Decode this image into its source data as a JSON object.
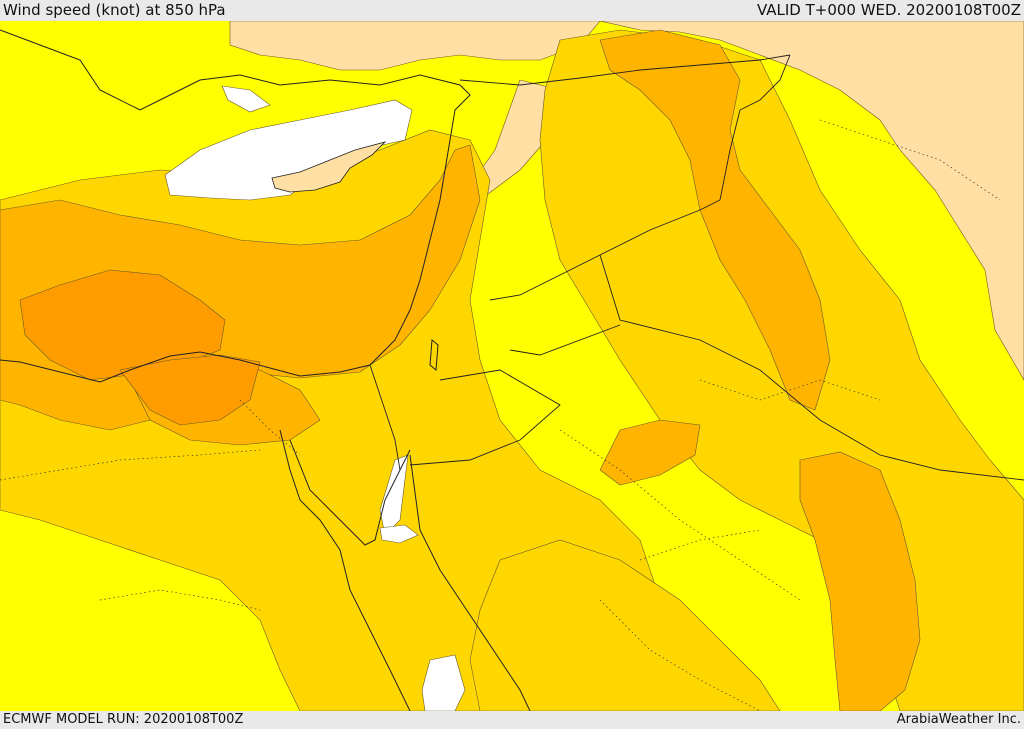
{
  "header": {
    "title": "Wind speed (knot) at 850 hPa",
    "valid": "VALID T+000 WED. 20200108T00Z"
  },
  "footer": {
    "model_run": "ECMWF MODEL RUN: 20200108T00Z",
    "brand": "ArabiaWeather Inc."
  },
  "colors": {
    "level_0": "#ffffff",
    "level_1": "#ffdfa3",
    "level_2": "#ffff00",
    "level_3": "#ffd700",
    "level_4": "#ffb400",
    "level_5": "#ff9c00"
  }
}
